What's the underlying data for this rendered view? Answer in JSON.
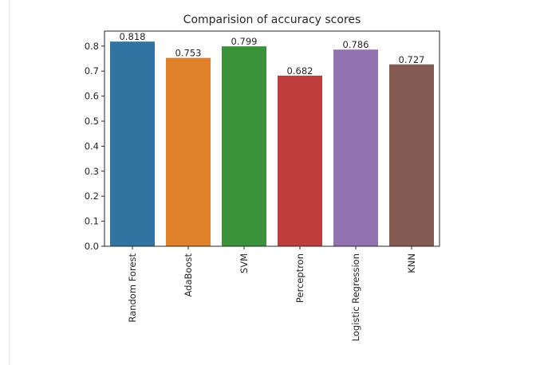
{
  "chart_data": {
    "type": "bar",
    "title": "Comparision of accuracy scores",
    "xlabel": "",
    "ylabel": "",
    "ylim": [
      0,
      0.86
    ],
    "yticks": [
      0.0,
      0.1,
      0.2,
      0.3,
      0.4,
      0.5,
      0.6,
      0.7,
      0.8
    ],
    "ytick_labels": [
      "0.0",
      "0.1",
      "0.2",
      "0.3",
      "0.4",
      "0.5",
      "0.6",
      "0.7",
      "0.8"
    ],
    "categories": [
      "Random Forest",
      "AdaBoost",
      "SVM",
      "Perceptron",
      "Logistic Regression",
      "KNN"
    ],
    "values": [
      0.818,
      0.753,
      0.799,
      0.682,
      0.786,
      0.727
    ],
    "value_labels": [
      "0.818",
      "0.753",
      "0.799",
      "0.682",
      "0.786",
      "0.727"
    ],
    "colors": [
      "#3274a1",
      "#e1812c",
      "#3a923a",
      "#c03d3e",
      "#9372b2",
      "#845b53"
    ],
    "grid": false,
    "legend": "none"
  }
}
